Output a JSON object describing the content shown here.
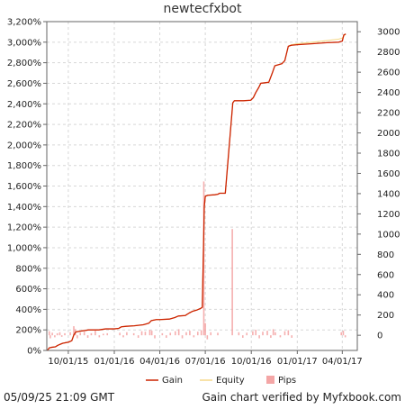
{
  "footer": {
    "timestamp": "05/09/25 21:09 GMT",
    "verification": "Gain chart verified by Myfxbook.com"
  },
  "chart_data": {
    "type": "line",
    "title": "newtecfxbot",
    "x_axis": {
      "type": "date",
      "range": [
        "2015-08-19",
        "2017-05-01"
      ],
      "ticks": [
        {
          "label": "10/01/15",
          "date": "2015-10-01"
        },
        {
          "label": "01/01/16",
          "date": "2016-01-01"
        },
        {
          "label": "04/01/16",
          "date": "2016-04-01"
        },
        {
          "label": "07/01/16",
          "date": "2016-07-01"
        },
        {
          "label": "10/01/16",
          "date": "2016-10-01"
        },
        {
          "label": "01/01/17",
          "date": "2017-01-01"
        },
        {
          "label": "04/01/17",
          "date": "2017-04-01"
        }
      ]
    },
    "y_left": {
      "range": [
        0,
        3200
      ],
      "unit": "%",
      "ticks": [
        {
          "value": 0,
          "label": "0%"
        },
        {
          "value": 200,
          "label": "200%"
        },
        {
          "value": 400,
          "label": "400%"
        },
        {
          "value": 600,
          "label": "600%"
        },
        {
          "value": 800,
          "label": "800%"
        },
        {
          "value": 1000,
          "label": "1,000%"
        },
        {
          "value": 1200,
          "label": "1,200%"
        },
        {
          "value": 1400,
          "label": "1,400%"
        },
        {
          "value": 1600,
          "label": "1,600%"
        },
        {
          "value": 1800,
          "label": "1,800%"
        },
        {
          "value": 2000,
          "label": "2,000%"
        },
        {
          "value": 2200,
          "label": "2,200%"
        },
        {
          "value": 2400,
          "label": "2,400%"
        },
        {
          "value": 2600,
          "label": "2,600%"
        },
        {
          "value": 2800,
          "label": "2,800%"
        },
        {
          "value": 3000,
          "label": "3,000%"
        },
        {
          "value": 3200,
          "label": "3,200%"
        }
      ]
    },
    "y_right": {
      "range": [
        -150,
        3100
      ],
      "ticks": [
        {
          "value": 0,
          "label": "0"
        },
        {
          "value": 200,
          "label": "200"
        },
        {
          "value": 400,
          "label": "400"
        },
        {
          "value": 600,
          "label": "600"
        },
        {
          "value": 800,
          "label": "800"
        },
        {
          "value": 1000,
          "label": "1000"
        },
        {
          "value": 1200,
          "label": "1200"
        },
        {
          "value": 1400,
          "label": "1400"
        },
        {
          "value": 1600,
          "label": "1600"
        },
        {
          "value": 1800,
          "label": "1800"
        },
        {
          "value": 2000,
          "label": "2000"
        },
        {
          "value": 2200,
          "label": "2200"
        },
        {
          "value": 2400,
          "label": "2400"
        },
        {
          "value": 2600,
          "label": "2600"
        },
        {
          "value": 2800,
          "label": "2800"
        },
        {
          "value": 3000,
          "label": "3000"
        }
      ]
    },
    "grid": true,
    "legend_position": "bottom-center",
    "series": [
      {
        "name": "Gain",
        "axis": "left",
        "color": "#cc2200",
        "points": [
          [
            "2015-08-20",
            0
          ],
          [
            "2015-08-24",
            25
          ],
          [
            "2015-08-28",
            30
          ],
          [
            "2015-09-05",
            35
          ],
          [
            "2015-09-10",
            50
          ],
          [
            "2015-09-15",
            60
          ],
          [
            "2015-09-20",
            70
          ],
          [
            "2015-09-25",
            75
          ],
          [
            "2015-10-01",
            80
          ],
          [
            "2015-10-08",
            95
          ],
          [
            "2015-10-12",
            150
          ],
          [
            "2015-10-16",
            180
          ],
          [
            "2015-10-22",
            185
          ],
          [
            "2015-10-28",
            190
          ],
          [
            "2015-11-05",
            195
          ],
          [
            "2015-11-10",
            200
          ],
          [
            "2015-11-20",
            200
          ],
          [
            "2015-12-01",
            200
          ],
          [
            "2015-12-15",
            210
          ],
          [
            "2015-12-28",
            210
          ],
          [
            "2016-01-01",
            210
          ],
          [
            "2016-01-10",
            215
          ],
          [
            "2016-01-15",
            230
          ],
          [
            "2016-01-25",
            235
          ],
          [
            "2016-02-10",
            240
          ],
          [
            "2016-02-28",
            250
          ],
          [
            "2016-03-10",
            265
          ],
          [
            "2016-03-15",
            290
          ],
          [
            "2016-03-25",
            300
          ],
          [
            "2016-04-01",
            300
          ],
          [
            "2016-04-20",
            305
          ],
          [
            "2016-05-01",
            320
          ],
          [
            "2016-05-08",
            335
          ],
          [
            "2016-05-22",
            340
          ],
          [
            "2016-05-30",
            365
          ],
          [
            "2016-06-05",
            380
          ],
          [
            "2016-06-15",
            395
          ],
          [
            "2016-06-22",
            410
          ],
          [
            "2016-06-25",
            420
          ],
          [
            "2016-06-29",
            1400
          ],
          [
            "2016-07-01",
            1500
          ],
          [
            "2016-07-06",
            1510
          ],
          [
            "2016-07-20",
            1515
          ],
          [
            "2016-07-26",
            1520
          ],
          [
            "2016-07-30",
            1530
          ],
          [
            "2016-08-10",
            1530
          ],
          [
            "2016-08-25",
            2410
          ],
          [
            "2016-08-28",
            2430
          ],
          [
            "2016-09-15",
            2430
          ],
          [
            "2016-09-30",
            2435
          ],
          [
            "2016-10-05",
            2460
          ],
          [
            "2016-10-10",
            2510
          ],
          [
            "2016-10-16",
            2560
          ],
          [
            "2016-10-20",
            2600
          ],
          [
            "2016-11-05",
            2610
          ],
          [
            "2016-11-12",
            2700
          ],
          [
            "2016-11-17",
            2770
          ],
          [
            "2016-12-01",
            2790
          ],
          [
            "2016-12-07",
            2820
          ],
          [
            "2016-12-14",
            2960
          ],
          [
            "2016-12-20",
            2970
          ],
          [
            "2017-01-01",
            2975
          ],
          [
            "2017-02-01",
            2985
          ],
          [
            "2017-03-01",
            2995
          ],
          [
            "2017-03-25",
            3000
          ],
          [
            "2017-04-01",
            3010
          ],
          [
            "2017-04-04",
            3070
          ],
          [
            "2017-04-08",
            3080
          ]
        ]
      },
      {
        "name": "Equity",
        "axis": "left",
        "color": "#f5d98a",
        "points": [
          [
            "2015-08-20",
            0
          ],
          [
            "2015-08-24",
            25
          ],
          [
            "2015-08-28",
            30
          ],
          [
            "2015-09-05",
            35
          ],
          [
            "2015-09-10",
            50
          ],
          [
            "2015-09-15",
            60
          ],
          [
            "2015-09-20",
            70
          ],
          [
            "2015-09-25",
            75
          ],
          [
            "2015-10-01",
            80
          ],
          [
            "2015-10-08",
            95
          ],
          [
            "2015-10-12",
            150
          ],
          [
            "2015-10-16",
            180
          ],
          [
            "2015-10-22",
            185
          ],
          [
            "2015-10-28",
            190
          ],
          [
            "2015-11-05",
            195
          ],
          [
            "2015-11-10",
            200
          ],
          [
            "2015-11-20",
            200
          ],
          [
            "2015-12-01",
            200
          ],
          [
            "2015-12-15",
            210
          ],
          [
            "2015-12-28",
            210
          ],
          [
            "2016-01-01",
            210
          ],
          [
            "2016-01-10",
            215
          ],
          [
            "2016-01-15",
            230
          ],
          [
            "2016-01-25",
            235
          ],
          [
            "2016-02-10",
            240
          ],
          [
            "2016-02-28",
            250
          ],
          [
            "2016-03-10",
            265
          ],
          [
            "2016-03-15",
            290
          ],
          [
            "2016-03-25",
            300
          ],
          [
            "2016-04-01",
            300
          ],
          [
            "2016-04-20",
            305
          ],
          [
            "2016-05-01",
            320
          ],
          [
            "2016-05-08",
            335
          ],
          [
            "2016-05-22",
            340
          ],
          [
            "2016-05-30",
            365
          ],
          [
            "2016-06-05",
            380
          ],
          [
            "2016-06-15",
            395
          ],
          [
            "2016-06-22",
            410
          ],
          [
            "2016-06-25",
            420
          ],
          [
            "2016-06-29",
            1400
          ],
          [
            "2016-07-01",
            1500
          ],
          [
            "2016-07-06",
            1510
          ],
          [
            "2016-07-20",
            1515
          ],
          [
            "2016-07-26",
            1520
          ],
          [
            "2016-07-30",
            1530
          ],
          [
            "2016-08-10",
            1530
          ],
          [
            "2016-08-25",
            2410
          ],
          [
            "2016-08-28",
            2430
          ],
          [
            "2016-09-15",
            2430
          ],
          [
            "2016-09-30",
            2435
          ],
          [
            "2016-10-05",
            2460
          ],
          [
            "2016-10-10",
            2510
          ],
          [
            "2016-10-16",
            2560
          ],
          [
            "2016-10-20",
            2600
          ],
          [
            "2016-11-05",
            2610
          ],
          [
            "2016-11-12",
            2700
          ],
          [
            "2016-11-17",
            2770
          ],
          [
            "2016-12-01",
            2790
          ],
          [
            "2016-12-07",
            2820
          ],
          [
            "2016-12-14",
            2960
          ],
          [
            "2016-12-20",
            2975
          ],
          [
            "2017-01-01",
            2985
          ],
          [
            "2017-02-01",
            3000
          ],
          [
            "2017-03-01",
            3015
          ],
          [
            "2017-03-25",
            3030
          ],
          [
            "2017-04-01",
            3040
          ],
          [
            "2017-04-04",
            3060
          ],
          [
            "2017-04-08",
            3080
          ]
        ]
      },
      {
        "name": "Pips",
        "axis": "right",
        "type": "bar",
        "color": "#f4a6a6",
        "points": [
          [
            "2015-08-24",
            40
          ],
          [
            "2015-08-26",
            -30
          ],
          [
            "2015-08-30",
            25
          ],
          [
            "2015-09-04",
            -20
          ],
          [
            "2015-09-09",
            20
          ],
          [
            "2015-09-14",
            30
          ],
          [
            "2015-09-18",
            -15
          ],
          [
            "2015-09-24",
            20
          ],
          [
            "2015-10-05",
            30
          ],
          [
            "2015-10-12",
            90
          ],
          [
            "2015-10-15",
            60
          ],
          [
            "2015-10-19",
            -30
          ],
          [
            "2015-10-25",
            25
          ],
          [
            "2015-11-02",
            35
          ],
          [
            "2015-11-09",
            -25
          ],
          [
            "2015-11-16",
            20
          ],
          [
            "2015-11-24",
            45
          ],
          [
            "2015-12-02",
            -20
          ],
          [
            "2015-12-10",
            15
          ],
          [
            "2015-12-18",
            20
          ],
          [
            "2016-01-12",
            25
          ],
          [
            "2016-01-19",
            -20
          ],
          [
            "2016-01-26",
            30
          ],
          [
            "2016-02-09",
            20
          ],
          [
            "2016-02-18",
            -25
          ],
          [
            "2016-02-25",
            40
          ],
          [
            "2016-03-03",
            35
          ],
          [
            "2016-03-12",
            55
          ],
          [
            "2016-03-16",
            45
          ],
          [
            "2016-03-22",
            -30
          ],
          [
            "2016-04-06",
            20
          ],
          [
            "2016-04-14",
            -25
          ],
          [
            "2016-04-22",
            25
          ],
          [
            "2016-05-02",
            40
          ],
          [
            "2016-05-09",
            60
          ],
          [
            "2016-05-16",
            -30
          ],
          [
            "2016-05-24",
            30
          ],
          [
            "2016-05-31",
            45
          ],
          [
            "2016-06-08",
            -20
          ],
          [
            "2016-06-16",
            35
          ],
          [
            "2016-06-23",
            50
          ],
          [
            "2016-06-28",
            1520
          ],
          [
            "2016-07-01",
            120
          ],
          [
            "2016-07-05",
            -40
          ],
          [
            "2016-07-12",
            30
          ],
          [
            "2016-07-26",
            25
          ],
          [
            "2016-08-24",
            1050
          ],
          [
            "2016-09-06",
            30
          ],
          [
            "2016-09-14",
            -25
          ],
          [
            "2016-09-22",
            25
          ],
          [
            "2016-10-04",
            40
          ],
          [
            "2016-10-10",
            55
          ],
          [
            "2016-10-17",
            -30
          ],
          [
            "2016-10-24",
            35
          ],
          [
            "2016-11-02",
            45
          ],
          [
            "2016-11-09",
            -25
          ],
          [
            "2016-11-14",
            60
          ],
          [
            "2016-11-18",
            30
          ],
          [
            "2016-11-28",
            -20
          ],
          [
            "2016-12-07",
            40
          ],
          [
            "2016-12-14",
            50
          ],
          [
            "2016-12-21",
            -25
          ],
          [
            "2017-03-30",
            30
          ],
          [
            "2017-04-03",
            45
          ],
          [
            "2017-04-07",
            -20
          ]
        ]
      }
    ]
  }
}
